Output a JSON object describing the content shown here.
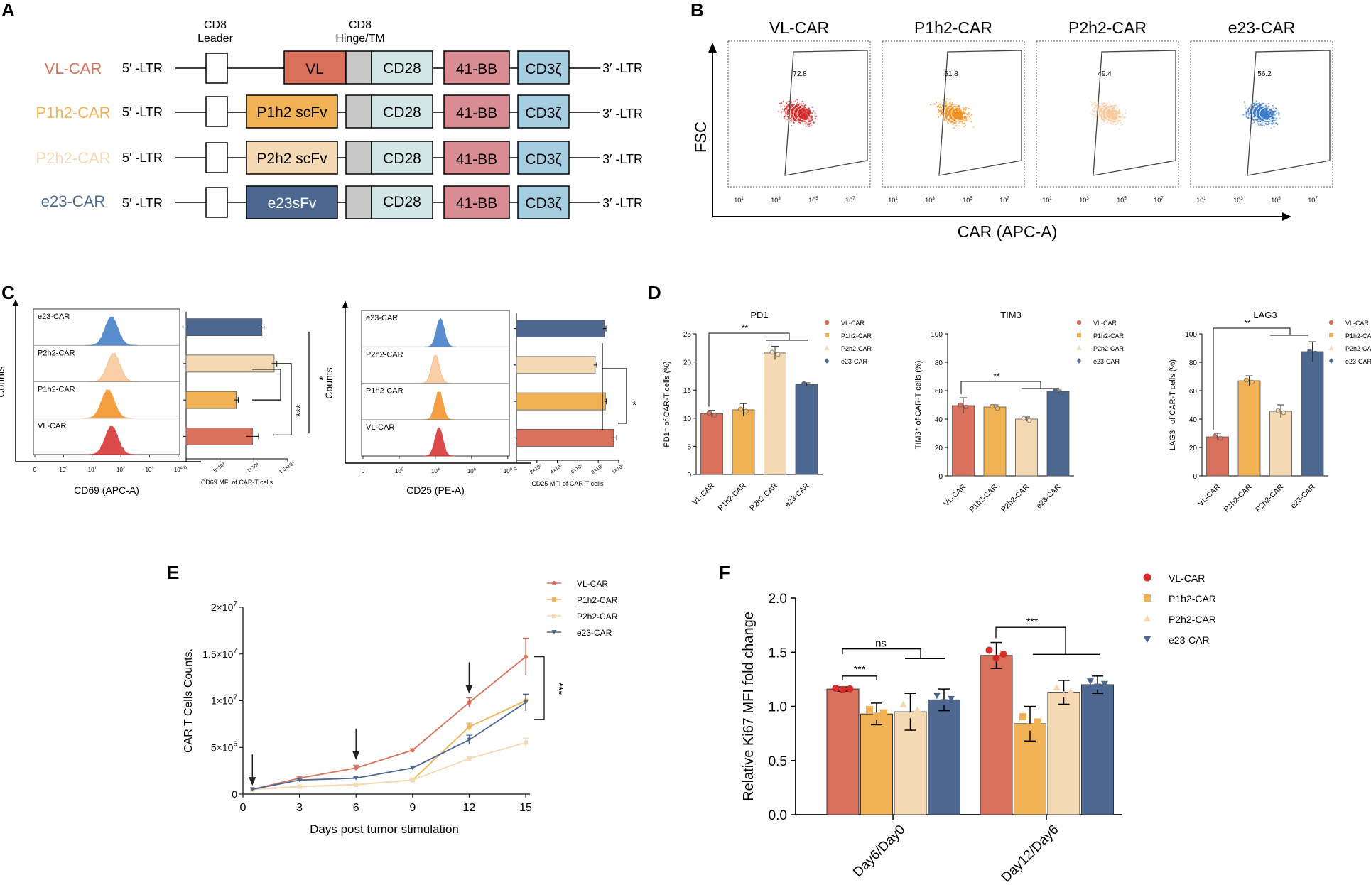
{
  "colors": {
    "VL": "#d9705c",
    "P1h2": "#f0b254",
    "P2h2": "#f5d9b4",
    "e23": "#4d6890",
    "red": "#d42b2b",
    "orange": "#f39022",
    "peach": "#f9c79a",
    "blue": "#3a79c6",
    "gray": "#c8c8c8",
    "cd28": "#d3e6e6",
    "bb": "#d98c94",
    "cd3": "#a6cce0"
  },
  "panelA": {
    "label": "A",
    "header_leader": [
      "CD8",
      "Leader"
    ],
    "header_hinge": [
      "CD8",
      "Hinge/TM"
    ],
    "constructs": [
      {
        "name": "VL-CAR",
        "ltr5": "5′ -LTR",
        "scfv": "VL",
        "cd28": "CD28",
        "bb": "41-BB",
        "cd3": "CD3ζ",
        "ltr3": "3′ -LTR"
      },
      {
        "name": "P1h2-CAR",
        "ltr5": "5′ -LTR",
        "scfv": "P1h2 scFv",
        "cd28": "CD28",
        "bb": "41-BB",
        "cd3": "CD3ζ",
        "ltr3": "3′ -LTR"
      },
      {
        "name": "P2h2-CAR",
        "ltr5": "5′ -LTR",
        "scfv": "P2h2 scFv",
        "cd28": "CD28",
        "bb": "41-BB",
        "cd3": "CD3ζ",
        "ltr3": "3′ -LTR"
      },
      {
        "name": "e23-CAR",
        "ltr5": "5′ -LTR",
        "scfv": "e23sFv",
        "cd28": "CD28",
        "bb": "41-BB",
        "cd3": "CD3ζ",
        "ltr3": "3′ -LTR"
      }
    ]
  },
  "panelB": {
    "label": "B",
    "ylabel": "FSC",
    "xlabel": "CAR (APC-A)",
    "plots": [
      {
        "title": "VL-CAR",
        "gate": "72.8"
      },
      {
        "title": "P1h2-CAR",
        "gate": "61.8"
      },
      {
        "title": "P2h2-CAR",
        "gate": "49.4"
      },
      {
        "title": "e23-CAR",
        "gate": "56.2"
      }
    ],
    "ticks": [
      "10",
      "10",
      "10",
      "10"
    ],
    "tick_exps": [
      "1",
      "3",
      "5",
      "7"
    ]
  },
  "panelC": {
    "label": "C",
    "left": {
      "ylabel": "Counts",
      "xlabel": "CD69 (APC-A)",
      "hist_labels": [
        "e23-CAR",
        "P2h2-CAR",
        "P1h2-CAR",
        "VL-CAR"
      ],
      "hist_ticks": [
        "0",
        "10",
        "10",
        "10",
        "10",
        "10"
      ],
      "hist_exps": [
        "",
        "0",
        "1",
        "2",
        "3",
        "4"
      ],
      "bar_xlabel": "CD69 MFI of CAR-T cells",
      "bar_ticks": [
        "0",
        "5×10³",
        "1×10⁴",
        "1.5×10⁴"
      ],
      "sig": [
        "*",
        "***"
      ]
    },
    "right": {
      "ylabel": "Counts",
      "xlabel": "CD25 (PE-A)",
      "hist_labels": [
        "e23-CAR",
        "P2h2-CAR",
        "P1h2-CAR",
        "VL-CAR"
      ],
      "hist_ticks": [
        "0",
        "10",
        "10",
        "10",
        "10"
      ],
      "hist_exps": [
        "",
        "2",
        "4",
        "6",
        "8"
      ],
      "bar_xlabel": "CD25 MFI of CAR-T cells",
      "bar_ticks": [
        "0",
        "2×10⁵",
        "4×10⁵",
        "6×10⁵",
        "8×10⁵",
        "1×10⁶"
      ],
      "sig": [
        "*"
      ]
    }
  },
  "panelD": {
    "label": "D"
  },
  "panelE": {
    "label": "E"
  },
  "panelF": {
    "label": "F"
  },
  "chart_data": [
    {
      "id": "C-left-bars",
      "type": "bar",
      "orientation": "horizontal",
      "categories": [
        "e23-CAR",
        "P2h2-CAR",
        "P1h2-CAR",
        "VL-CAR"
      ],
      "values": [
        11200,
        13000,
        7400,
        9800
      ],
      "errors": [
        300,
        400,
        300,
        900
      ],
      "xlabel": "CD69 MFI of CAR-T cells",
      "xlim": [
        0,
        15000
      ]
    },
    {
      "id": "C-right-bars",
      "type": "bar",
      "orientation": "horizontal",
      "categories": [
        "e23-CAR",
        "P2h2-CAR",
        "P1h2-CAR",
        "VL-CAR"
      ],
      "values": [
        860000,
        770000,
        870000,
        950000
      ],
      "errors": [
        15000,
        15000,
        10000,
        30000
      ],
      "xlabel": "CD25 MFI of CAR-T cells",
      "xlim": [
        0,
        1000000
      ]
    },
    {
      "id": "D-PD1",
      "type": "bar",
      "title": "PD1",
      "categories": [
        "VL-CAR",
        "P1h2-CAR",
        "P2h2-CAR",
        "e23-CAR"
      ],
      "values": [
        10.8,
        11.5,
        21.6,
        16.0
      ],
      "errors": [
        0.6,
        1.1,
        1.2,
        0.3
      ],
      "ylabel": "PD1⁺ of CAR-T cells (%)",
      "ylim": [
        0,
        25
      ],
      "yticks": [
        0,
        5,
        10,
        15,
        20,
        25
      ],
      "legend": [
        "VL-CAR",
        "P1h2-CAR",
        "P2h2-CAR",
        "e23-CAR"
      ],
      "sig": "**"
    },
    {
      "id": "D-TIM3",
      "type": "bar",
      "title": "TIM3",
      "categories": [
        "VL-CAR",
        "P1h2-CAR",
        "P2h2-CAR",
        "e23-CAR"
      ],
      "values": [
        49.5,
        48.5,
        40.0,
        59.5
      ],
      "errors": [
        5.5,
        1.5,
        1.5,
        1.0
      ],
      "ylabel": "TIM3⁺ of CAR-T cells (%)",
      "ylim": [
        0,
        100
      ],
      "yticks": [
        0,
        20,
        40,
        60,
        80,
        100
      ],
      "legend": [
        "VL-CAR",
        "P1h2-CAR",
        "P2h2-CAR",
        "e23-CAR"
      ],
      "sig": "**"
    },
    {
      "id": "D-LAG3",
      "type": "bar",
      "title": "LAG3",
      "categories": [
        "VL-CAR",
        "P1h2-CAR",
        "P2h2-CAR",
        "e23-CAR"
      ],
      "values": [
        27.5,
        67.0,
        45.5,
        87.5
      ],
      "errors": [
        2.5,
        3.5,
        4.5,
        7.0
      ],
      "ylabel": "LAG3⁺ of CAR-T cells (%)",
      "ylim": [
        0,
        100
      ],
      "yticks": [
        0,
        20,
        40,
        60,
        80,
        100
      ],
      "legend": [
        "VL-CAR",
        "P1h2-CAR",
        "P2h2-CAR",
        "e23-CAR"
      ],
      "sig": "**"
    },
    {
      "id": "E",
      "type": "line",
      "x": [
        0.5,
        3,
        6,
        9,
        12,
        15
      ],
      "xticks": [
        0,
        3,
        6,
        9,
        12,
        15
      ],
      "series": [
        {
          "name": "VL-CAR",
          "values": [
            0.5,
            1.7,
            2.8,
            4.7,
            9.8,
            14.7
          ],
          "errors": [
            0,
            0.15,
            0.3,
            0.15,
            0.5,
            2.0
          ]
        },
        {
          "name": "P1h2-CAR",
          "values": [
            0.5,
            0.8,
            1.0,
            1.5,
            7.2,
            10.0
          ],
          "errors": [
            0,
            0.05,
            0.05,
            0.1,
            0.4,
            0.7
          ]
        },
        {
          "name": "P2h2-CAR",
          "values": [
            0.5,
            0.8,
            1.0,
            1.5,
            3.8,
            5.5
          ],
          "errors": [
            0,
            0.05,
            0.05,
            0.1,
            0.15,
            0.5
          ]
        },
        {
          "name": "e23-CAR",
          "values": [
            0.5,
            1.5,
            1.7,
            2.8,
            5.8,
            9.8
          ],
          "errors": [
            0,
            0.1,
            0.1,
            0.2,
            0.5,
            0.9
          ]
        }
      ],
      "ytick_labels": [
        "0",
        "5×10",
        "1×10",
        "1.5×10",
        "2×10"
      ],
      "ytick_exps": [
        "",
        "6",
        "7",
        "7",
        "7"
      ],
      "ytick_values": [
        0,
        5,
        10,
        15,
        20
      ],
      "xlabel": "Days post tumor stimulation",
      "ylabel": "CAR T Cells Counts.",
      "arrows_at": [
        0.5,
        6,
        12
      ],
      "sig": "***",
      "legend": [
        "VL-CAR",
        "P1h2-CAR",
        "P2h2-CAR",
        "e23-CAR"
      ]
    },
    {
      "id": "F",
      "type": "bar",
      "groups": [
        "Day6/Day0",
        "Day12/Day6"
      ],
      "series": [
        {
          "name": "VL-CAR",
          "values": [
            1.16,
            1.47
          ],
          "errors": [
            0.02,
            0.12
          ]
        },
        {
          "name": "P1h2-CAR",
          "values": [
            0.93,
            0.84
          ],
          "errors": [
            0.1,
            0.16
          ]
        },
        {
          "name": "P2h2-CAR",
          "values": [
            0.95,
            1.13
          ],
          "errors": [
            0.17,
            0.11
          ]
        },
        {
          "name": "e23-CAR",
          "values": [
            1.06,
            1.2
          ],
          "errors": [
            0.1,
            0.08
          ]
        }
      ],
      "ylabel": "Relative Ki67 MFI fold change",
      "ylim": [
        0,
        2.0
      ],
      "yticks": [
        "0.0",
        "0.5",
        "1.0",
        "1.5",
        "2.0"
      ],
      "ytick_values": [
        0,
        0.5,
        1.0,
        1.5,
        2.0
      ],
      "sig": [
        "ns",
        "***",
        "***"
      ],
      "legend": [
        "VL-CAR",
        "P1h2-CAR",
        "P2h2-CAR",
        "e23-CAR"
      ]
    }
  ]
}
